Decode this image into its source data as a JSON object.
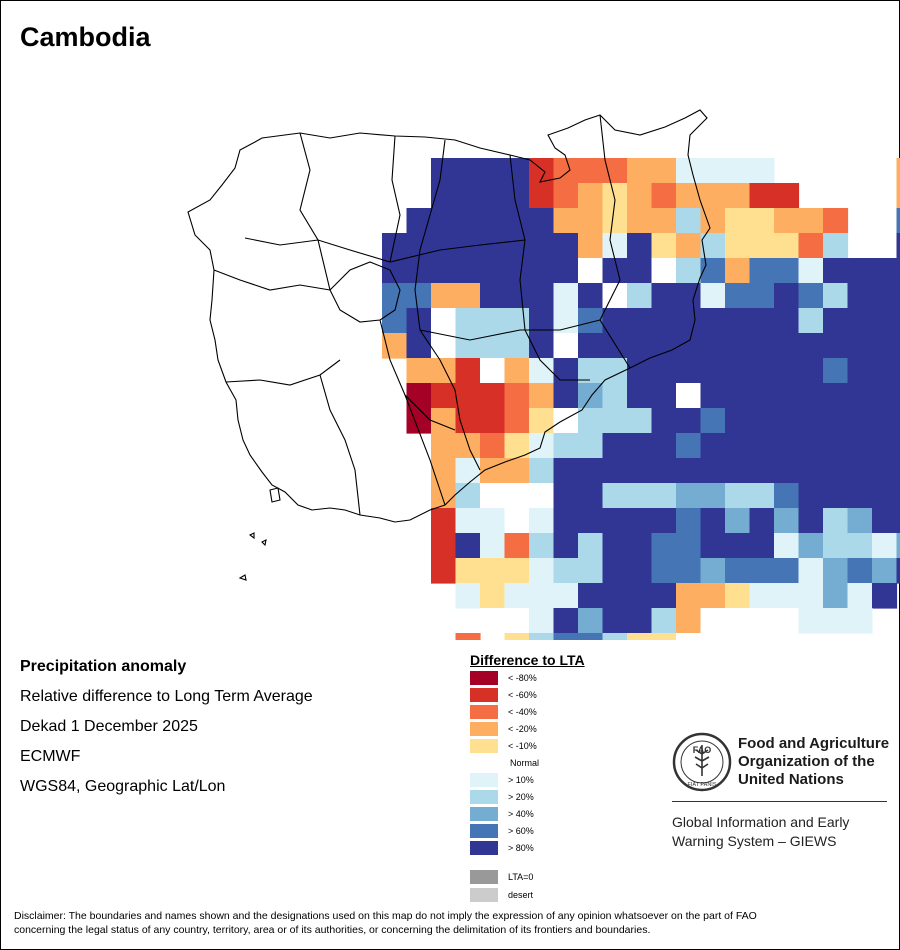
{
  "title": "Cambodia",
  "info": {
    "heading": "Precipitation anomaly",
    "line1": "Relative difference to Long Term Average",
    "line2": "Dekad 1 December 2025",
    "line3": "ECMWF",
    "line4": "WGS84, Geographic Lat/Lon"
  },
  "legend": {
    "title": "Difference to LTA",
    "items": [
      {
        "label": "< -80%",
        "color": "#a50026"
      },
      {
        "label": "< -60%",
        "color": "#d73027"
      },
      {
        "label": "< -40%",
        "color": "#f46d43"
      },
      {
        "label": "< -20%",
        "color": "#fdae61"
      },
      {
        "label": "< -10%",
        "color": "#fee090"
      },
      {
        "label": "Normal",
        "color": "#ffffff"
      },
      {
        "label": "> 10%",
        "color": "#e0f3f8"
      },
      {
        "label": "> 20%",
        "color": "#abd9e9"
      },
      {
        "label": "> 40%",
        "color": "#74add1"
      },
      {
        "label": "> 60%",
        "color": "#4575b4"
      },
      {
        "label": "> 80%",
        "color": "#313695"
      }
    ],
    "extra": [
      {
        "label": "LTA=0",
        "color": "#999999"
      },
      {
        "label": "desert",
        "color": "#cccccc"
      }
    ]
  },
  "logo": {
    "org_line1": "Food and Agriculture",
    "org_line2": "Organization of the",
    "org_line3": "United Nations",
    "giews_line1": "Global Information and Early",
    "giews_line2": "Warning System – GIEWS",
    "emblem_text": "FAO",
    "motto": "FIAT PANIS"
  },
  "disclaimer_line1": "Disclaimer: The boundaries and names shown and the designations used on this map do not imply the expression of any opinion whatsoever on the part of FAO",
  "disclaimer_line2": "concerning the legal status of any country, territory, area or of its authorities, or concerning the delimitation of its frontiers and boundaries.",
  "map_grid": {
    "legend_codes": "A=< -80%, B=< -60%, C=< -40%, D=< -20%, E=< -10%, N=Normal, F=> 10%, G=> 20%, H=> 40%, I=> 60%, J=> 80%",
    "rows": [
      "...............................EE....F",
      "...............................F.....E",
      "..........JJJJBCCCDDFFFF.....DFGGFFF...",
      "..........JJJJBCDEDCDDDBB....DJJJJFJ...",
      ".........JJJJJJDDEDDGDEEDDC..IJJIJJJI..",
      "........JJJJJJJJDFJEDGEEECG..JJJJIJJJJ.",
      "........JJJJJJJJNJJNGIDIIFJJJJJJIJIJJJ.",
      "........IIDDJJJFJNGJJFIIJIGJJJJJJJIGJJF",
      "........IJNGGGJFIJJJJJJJJGJJJJJJJJJJJNF",
      "........DJNGGGJNJJJJJJJJJJJJJJJJJJJJJJJ",
      ".........DDBNDFJGGJJJJJJJJIJJJJJJJJJJJJ",
      ".........ABBBCDJHGJJNJJJJJJJJJJJJJJJJJJ",
      ".........ADBBCENGGGJJIJJJJJJJJJJJJJJJJ.",
      "..........DDCEFGGJJJIJJJJJJJJJJJJJJJ...",
      "..........DFDDGJJJJJJJJJJJJJJJJJJJJ....",
      "..........DGNNNJJGGGHHGGIJJJJJ.........",
      "..........BFFNFJJJJJIJHJHJGHJJJ........",
      "..........BJFCGJGJJIIJJJFHGGFHJ........",
      "..........BEEEFGGJJIIHIIIFHIHJ.........",
      "...........FEFFFJJJJDDEFFFHFJ.J........",
      "............NNFJHJJGDNNNNFFF...........",
      "...........C.EGIIGEENNNN...............",
      "............C.FFNGNDNN.................",
      ".............D...EN.D.................."
    ]
  }
}
